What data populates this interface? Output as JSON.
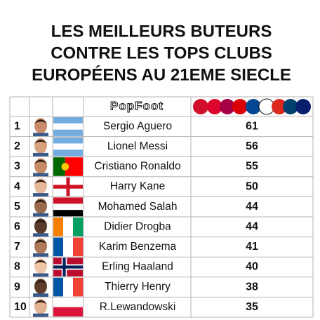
{
  "title": {
    "lines": [
      "LES MEILLEURS BUTEURS",
      "CONTRE LES TOPS CLUBS",
      "EUROPÉENS AU 21EME SIECLE"
    ]
  },
  "header": {
    "logo": "PopFoot"
  },
  "table": {
    "rows": [
      [
        "1",
        "Sergio Aguero",
        "61"
      ],
      [
        "2",
        "Lionel Messi",
        "56"
      ],
      [
        "3",
        "Cristiano Ronaldo",
        "55"
      ],
      [
        "4",
        "Harry Kane",
        "50"
      ],
      [
        "5",
        "Mohamed Salah",
        "44"
      ],
      [
        "6",
        "Didier Drogba",
        "44"
      ],
      [
        "7",
        "Karim Benzema",
        "41"
      ],
      [
        "8",
        "Erling Haaland",
        "40"
      ],
      [
        "9",
        "Thierry Henry",
        "38"
      ],
      [
        "10",
        "R.Lewandowski",
        "35"
      ]
    ]
  }
}
